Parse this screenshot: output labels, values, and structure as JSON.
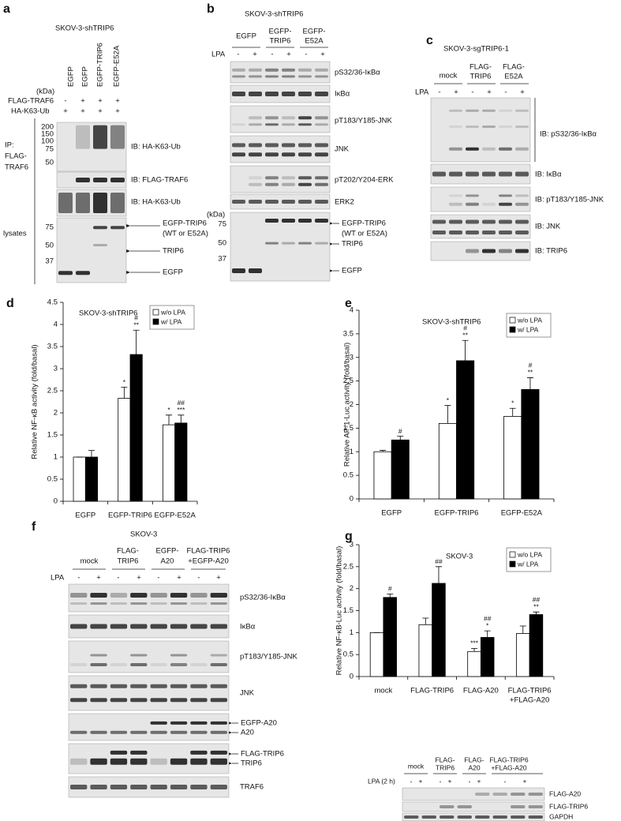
{
  "figure": {
    "a": {
      "label": "a",
      "title": "SKOV-3-shTRIP6",
      "lanes": [
        "EGFP",
        "EGFP",
        "EGFP-TRIP6",
        "EGFP-E52A"
      ],
      "kda": "(kDa)",
      "rows": [
        {
          "name": "FLAG-TRAF6",
          "signs": [
            "-",
            "+",
            "+",
            "+"
          ]
        },
        {
          "name": "HA-K63-Ub",
          "signs": [
            "+",
            "+",
            "+",
            "+"
          ]
        }
      ],
      "ip": [
        "IP:",
        "FLAG-",
        "TRAF6"
      ],
      "lysates": "lysates",
      "markers_top": [
        200,
        150,
        100,
        75,
        50
      ],
      "markers_bottom": [
        75,
        50,
        37
      ],
      "ib": [
        "IB: HA-K63-Ub",
        "IB: FLAG-TRAF6",
        "IB: HA-K63-Ub"
      ],
      "arrows": [
        "EGFP-TRIP6",
        "(WT or E52A)",
        "TRIP6",
        "EGFP"
      ]
    },
    "b": {
      "label": "b",
      "title": "SKOV-3-shTRIP6",
      "groups": [
        [
          "EGFP"
        ],
        [
          "EGFP-",
          "TRIP6"
        ],
        [
          "EGFP-",
          "E52A"
        ]
      ],
      "lpa": "LPA",
      "signs": [
        "-",
        "+",
        "-",
        "+",
        "-",
        "+"
      ],
      "blots": [
        "pS32/36-IκBα",
        "IκBα",
        "pT183/Y185-JNK",
        "JNK",
        "pT202/Y204-ERK",
        "ERK2"
      ],
      "kda": "(kDa)",
      "markers": [
        75,
        50,
        37
      ],
      "arrows": [
        "EGFP-TRIP6",
        "(WT or E52A)",
        "TRIP6",
        "EGFP"
      ]
    },
    "c": {
      "label": "c",
      "title": "SKOV-3-sgTRIP6-1",
      "groups": [
        [
          "mock"
        ],
        [
          "FLAG-",
          "TRIP6"
        ],
        [
          "FLAG-",
          "E52A"
        ]
      ],
      "lpa": "LPA",
      "signs": [
        "-",
        "+",
        "-",
        "+",
        "-",
        "+"
      ],
      "blots": [
        "IB: pS32/36-IκBα",
        "IB: IκBα",
        "IB: pT183/Y185-JNK",
        "IB: JNK",
        "IB: TRIP6"
      ]
    },
    "f": {
      "label": "f",
      "title": "SKOV-3",
      "groups": [
        [
          "mock"
        ],
        [
          "FLAG-",
          "TRIP6"
        ],
        [
          "EGFP-",
          "A20"
        ],
        [
          "FLAG-TRIP6",
          "+EGFP-A20"
        ]
      ],
      "lpa": "LPA",
      "signs": [
        "-",
        "+",
        "-",
        "+",
        "-",
        "+",
        "-",
        "+"
      ],
      "blots": [
        "pS32/36-IκBα",
        "IκBα",
        "pT183/Y185-JNK",
        "JNK",
        "EGFP-A20",
        "A20",
        "FLAG-TRIP6",
        "TRIP6",
        "TRAF6"
      ]
    },
    "g_blot": {
      "groups": [
        [
          "mock"
        ],
        [
          "FLAG-",
          "TRIP6"
        ],
        [
          "FLAG-",
          "A20"
        ],
        [
          "FLAG-TRIP6",
          "+FLAG-A20"
        ]
      ],
      "lpa": "LPA (2 h)",
      "signs": [
        "-",
        "+",
        "-",
        "+",
        "-",
        "+",
        "-",
        "+"
      ],
      "blots": [
        "FLAG-A20",
        "FLAG-TRIP6",
        "GAPDH"
      ]
    }
  },
  "chart_data": [
    {
      "type": "bar",
      "panel_label": "d",
      "title": "SKOV-3-shTRIP6",
      "y_label": "Relative NF-κB activity (fold/basal)",
      "categories": [
        "EGFP",
        "EGFP-TRIP6",
        "EGFP-E52A"
      ],
      "series": [
        {
          "name": "w/o LPA",
          "color": "#ffffff",
          "values": [
            1,
            2.33,
            1.73
          ],
          "errors": [
            0,
            0.25,
            0.22
          ],
          "sig": [
            [],
            [
              "*"
            ],
            [
              "*"
            ]
          ]
        },
        {
          "name": "w/ LPA",
          "color": "#000000",
          "values": [
            1,
            3.32,
            1.77
          ],
          "errors": [
            0.15,
            0.55,
            0.18
          ],
          "sig": [
            [],
            [
              "#",
              "**"
            ],
            [
              "##",
              "***"
            ]
          ]
        }
      ],
      "ylim": [
        0,
        4.5
      ],
      "yticks": [
        0,
        0.5,
        1,
        1.5,
        2,
        2.5,
        3,
        3.5,
        4,
        4.5
      ],
      "legend": "upper right"
    },
    {
      "type": "bar",
      "panel_label": "e",
      "title": "SKOV-3-shTRIP6",
      "y_label": "Relative AP-1-Luc activity (fold/basal)",
      "categories": [
        "EGFP",
        "EGFP-TRIP6",
        "EGFP-E52A"
      ],
      "series": [
        {
          "name": "w/o LPA",
          "color": "#ffffff",
          "values": [
            1,
            1.6,
            1.75
          ],
          "errors": [
            0.03,
            0.38,
            0.17
          ],
          "sig": [
            [],
            [
              "*"
            ],
            [
              "*"
            ]
          ]
        },
        {
          "name": "w/ LPA",
          "color": "#000000",
          "values": [
            1.25,
            2.93,
            2.32
          ],
          "errors": [
            0.08,
            0.43,
            0.25
          ],
          "sig": [
            [
              "#"
            ],
            [
              "#",
              "**"
            ],
            [
              "#",
              "**"
            ]
          ]
        }
      ],
      "ylim": [
        0,
        4
      ],
      "yticks": [
        0,
        0.5,
        1,
        1.5,
        2,
        2.5,
        3,
        3.5,
        4
      ],
      "legend": "upper right"
    },
    {
      "type": "bar",
      "panel_label": "g",
      "title": "SKOV-3",
      "y_label": "Relative NF-κB-Luc activity (fold/basal)",
      "categories": [
        "mock",
        "FLAG-TRIP6",
        "FLAG-A20",
        [
          "FLAG-TRIP6",
          "+FLAG-A20"
        ]
      ],
      "series": [
        {
          "name": "w/o LPA",
          "color": "#ffffff",
          "values": [
            1,
            1.18,
            0.57,
            0.98
          ],
          "errors": [
            0,
            0.15,
            0.07,
            0.17
          ],
          "sig": [
            [],
            [],
            [
              "***"
            ],
            []
          ]
        },
        {
          "name": "w/ LPA",
          "color": "#000000",
          "values": [
            1.8,
            2.12,
            0.89,
            1.41
          ],
          "errors": [
            0.08,
            0.38,
            0.15,
            0.06
          ],
          "sig": [
            [
              "#"
            ],
            [
              "##"
            ],
            [
              "##",
              "*"
            ],
            [
              "##",
              "**"
            ]
          ]
        }
      ],
      "ylim": [
        0,
        3
      ],
      "yticks": [
        0,
        0.5,
        1,
        1.5,
        2,
        2.5,
        3
      ],
      "legend": "upper right"
    }
  ]
}
